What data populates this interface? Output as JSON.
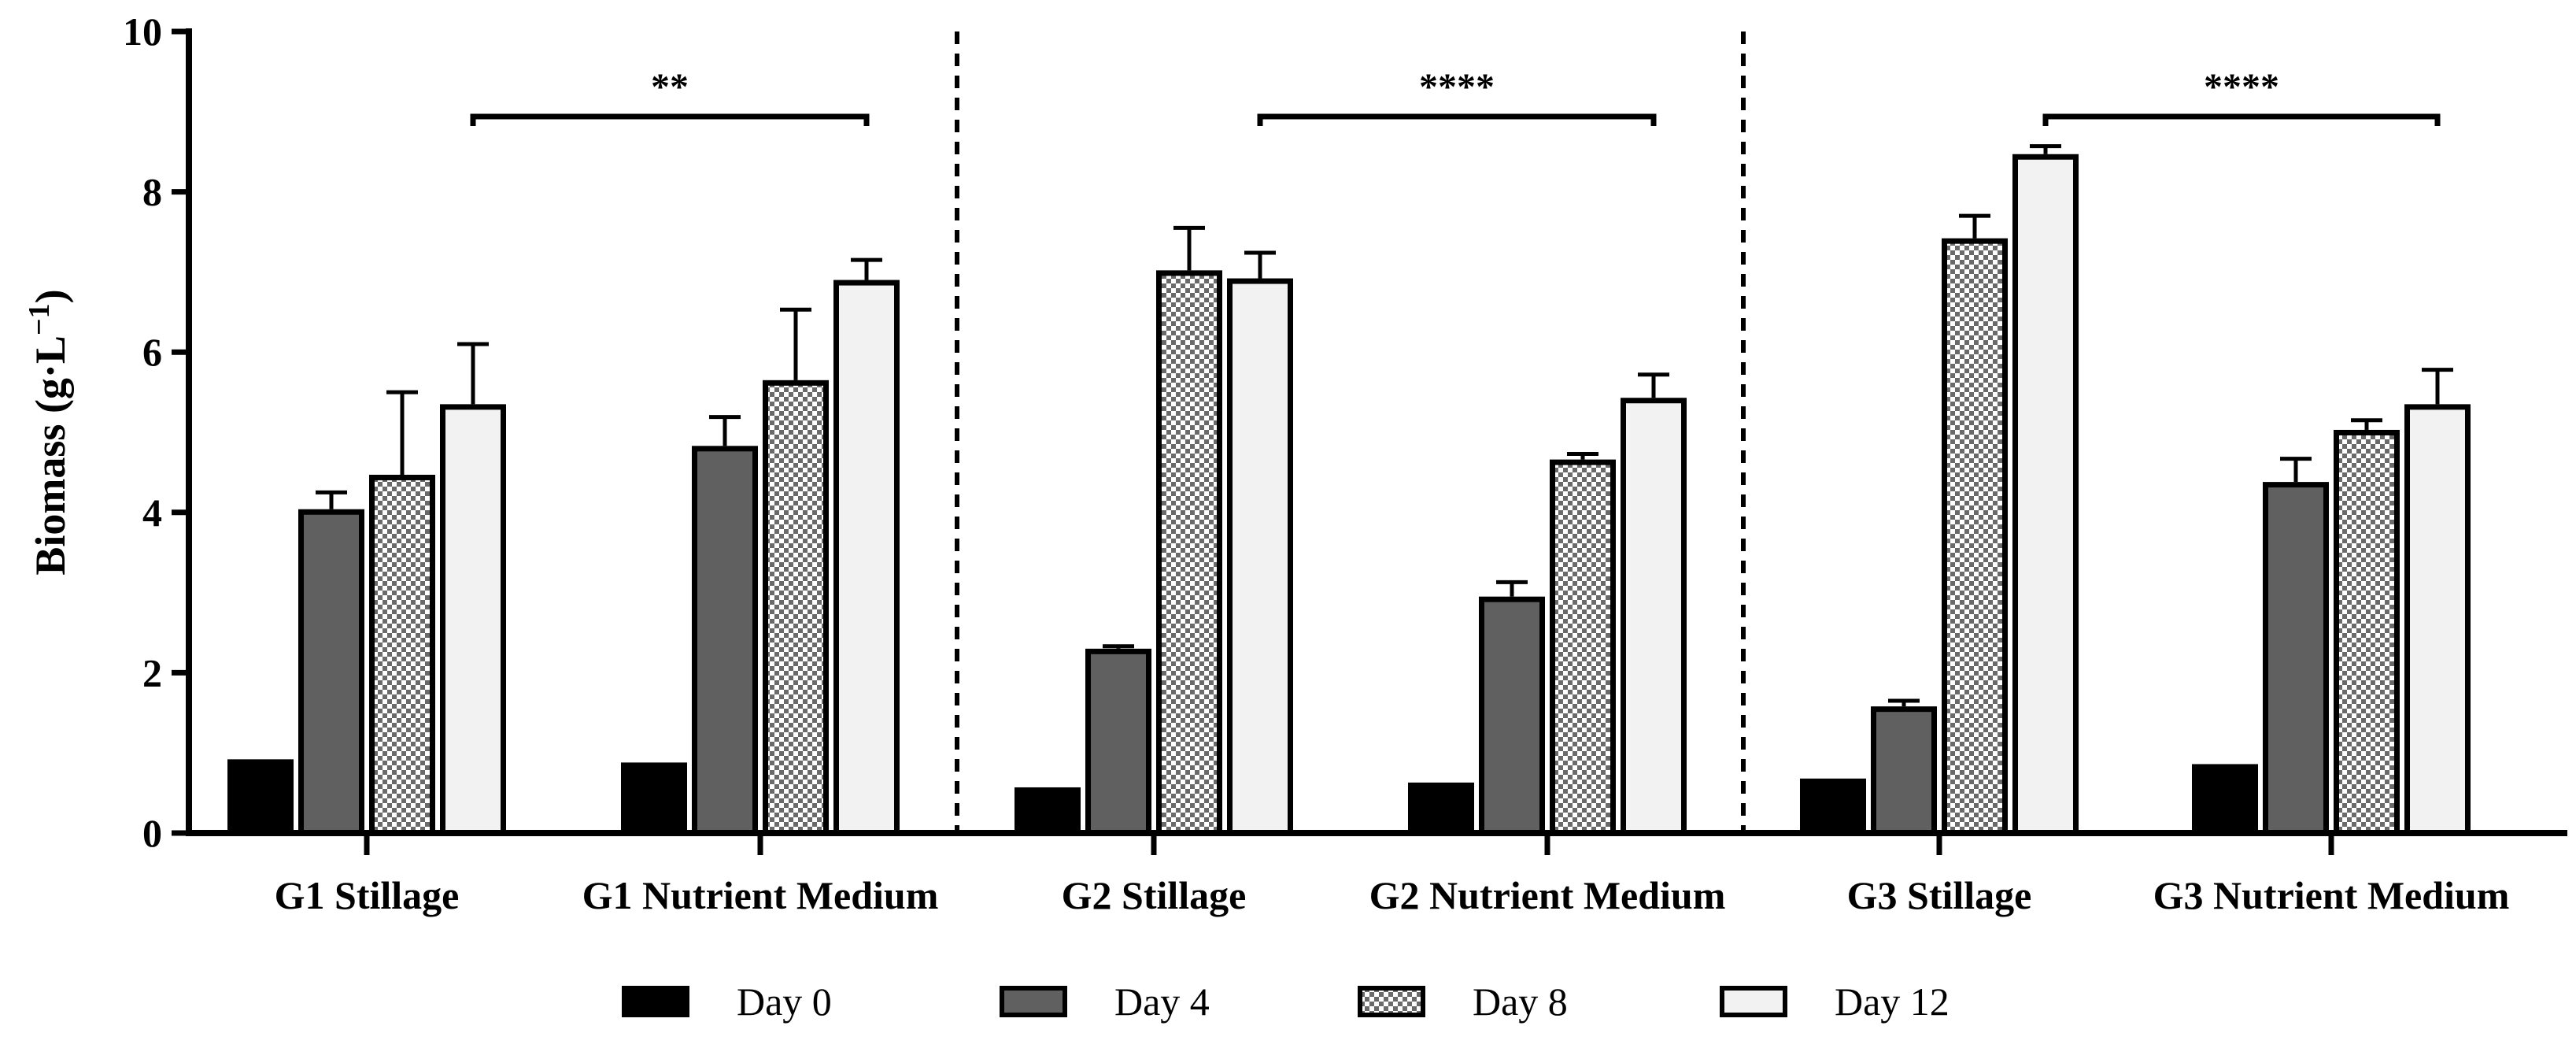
{
  "chart_data": {
    "type": "bar",
    "title": "",
    "xlabel": "",
    "ylabel": "Biomass (g·L",
    "ylabel_superscript": "−1",
    "ylabel_close": ")",
    "ylim": [
      0,
      10
    ],
    "yticks": [
      "0",
      "2",
      "4",
      "6",
      "8",
      "10"
    ],
    "categories": [
      "G1 Stillage",
      "G1 Nutrient Medium",
      "G2 Stillage",
      "G2 Nutrient Medium",
      "G3 Stillage",
      "G3 Nutrient Medium"
    ],
    "series": [
      {
        "name": "Day 0",
        "values": [
          0.92,
          0.88,
          0.57,
          0.63,
          0.68,
          0.86
        ],
        "errors": [
          0,
          0,
          0,
          0,
          0,
          0
        ]
      },
      {
        "name": "Day 4",
        "values": [
          4.04,
          4.83,
          2.3,
          2.95,
          1.58,
          4.38
        ],
        "errors": [
          0.21,
          0.36,
          0.03,
          0.18,
          0.07,
          0.29
        ]
      },
      {
        "name": "Day 8",
        "values": [
          4.47,
          5.65,
          7.02,
          4.66,
          7.42,
          5.03
        ],
        "errors": [
          1.03,
          0.88,
          0.53,
          0.07,
          0.28,
          0.12
        ]
      },
      {
        "name": "Day 12",
        "values": [
          5.35,
          6.9,
          6.92,
          5.43,
          8.47,
          5.35
        ],
        "errors": [
          0.75,
          0.25,
          0.32,
          0.29,
          0.1,
          0.43
        ]
      }
    ],
    "series_styles": {
      "Day 0": {
        "fill": "#000000"
      },
      "Day 4": {
        "fill": "#606060"
      },
      "Day 8": {
        "fill": "checker"
      },
      "Day 12": {
        "fill": "#f2f2f2"
      }
    },
    "separators_after_category": [
      1,
      3
    ],
    "significance": [
      {
        "label": "**",
        "from_category": 0,
        "to_category": 1
      },
      {
        "label": "****",
        "from_category": 2,
        "to_category": 3
      },
      {
        "label": "****",
        "from_category": 4,
        "to_category": 5
      }
    ],
    "legend_position": "bottom"
  }
}
